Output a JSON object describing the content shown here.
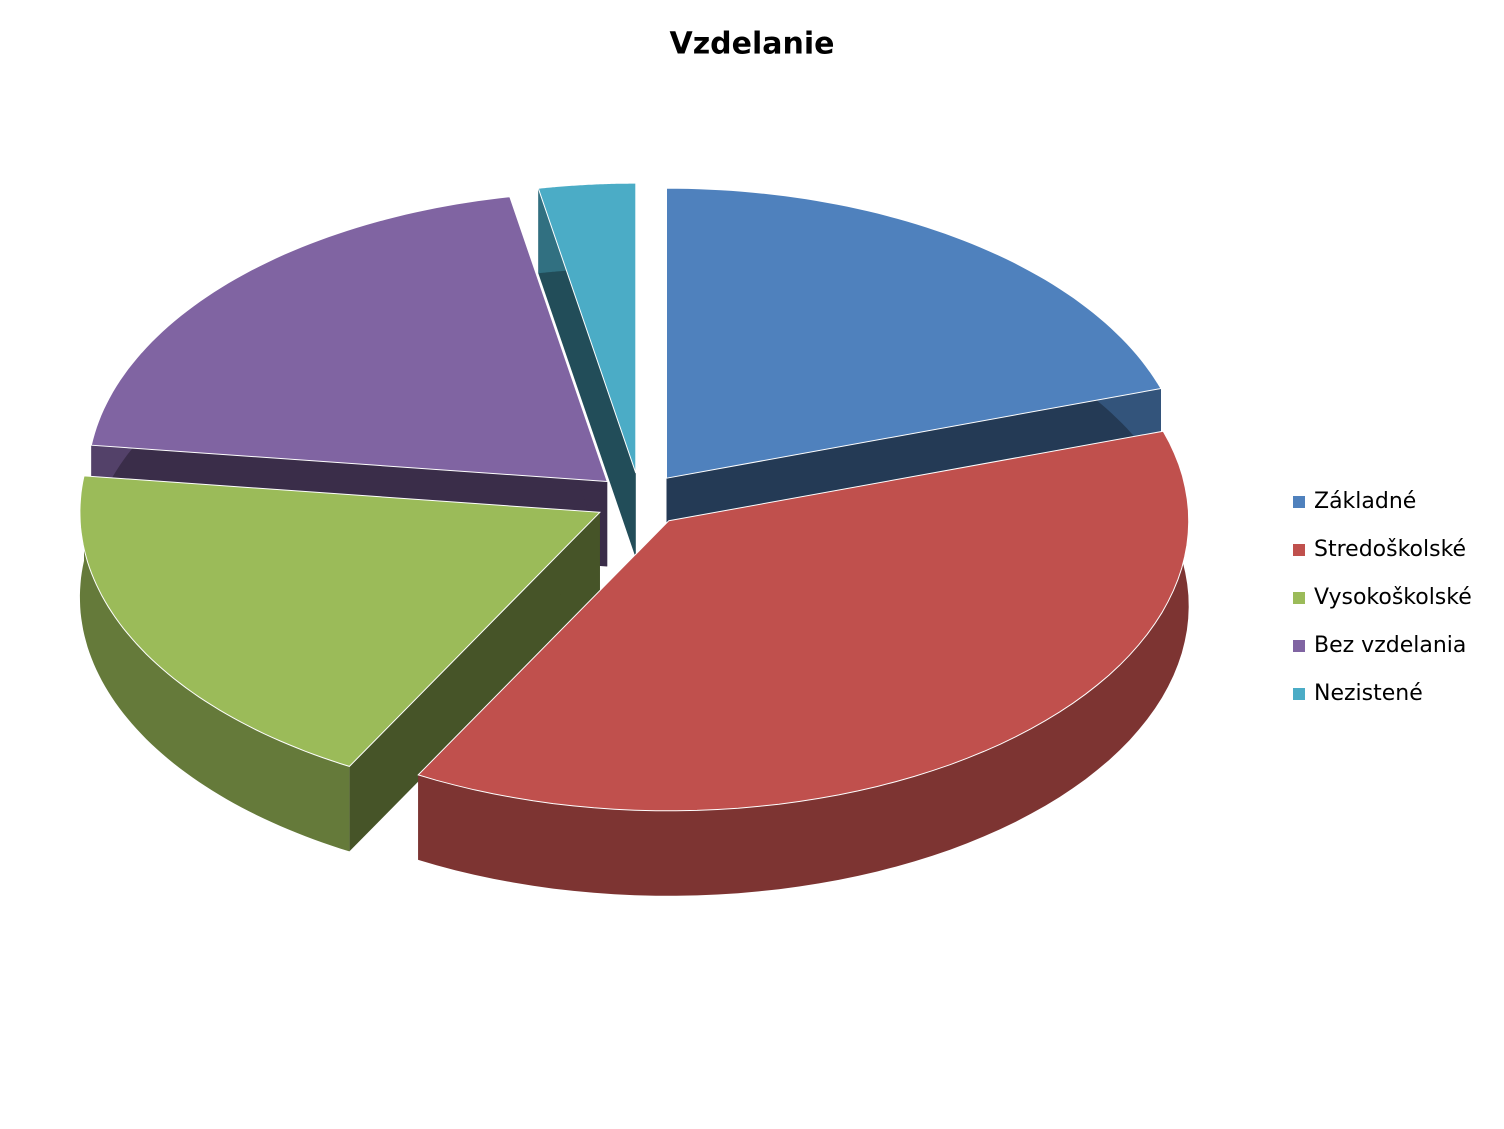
{
  "chart_data": {
    "type": "pie",
    "title": "Vzdelanie",
    "categories": [
      "Základné",
      "Stredoškolské",
      "Vysokoškolské",
      "Bez vzdelania",
      "Nezistené"
    ],
    "values": [
      20,
      38,
      19,
      20,
      3
    ],
    "colors": [
      "#4f81bd",
      "#c0504d",
      "#9bbb59",
      "#8064a2",
      "#4bacc6"
    ],
    "legend": "right"
  }
}
